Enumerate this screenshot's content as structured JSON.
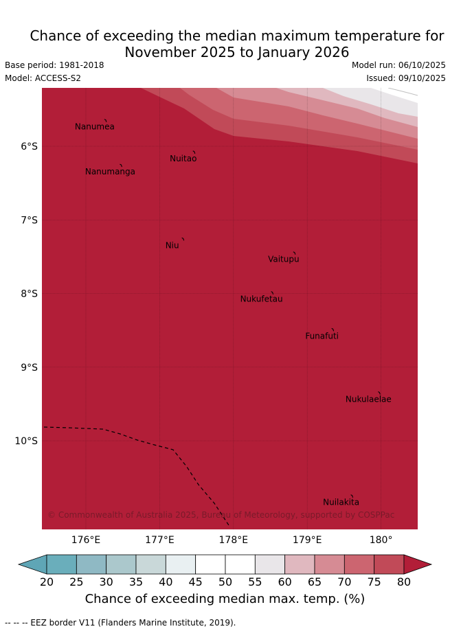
{
  "header": {
    "title_line1": "Chance of exceeding the median maximum temperature for",
    "title_line2": "November 2025 to January 2026",
    "base_period": "Base period: 1981-2018",
    "model": "Model: ACCESS-S2",
    "model_run": "Model run: 06/10/2025",
    "issued": "Issued: 09/10/2025"
  },
  "map": {
    "lon_ticks": [
      "176°E",
      "177°E",
      "178°E",
      "179°E",
      "180°"
    ],
    "lat_ticks": [
      "6°S",
      "7°S",
      "8°S",
      "9°S",
      "10°S"
    ],
    "islands": [
      {
        "name": "Nanumea",
        "lon": 176.12,
        "lat": -5.68
      },
      {
        "name": "Nuitao",
        "lon": 177.32,
        "lat": -6.11
      },
      {
        "name": "Nanumanga",
        "lon": 176.33,
        "lat": -6.29
      },
      {
        "name": "Niu",
        "lon": 177.17,
        "lat": -7.29
      },
      {
        "name": "Vaitupu",
        "lon": 178.68,
        "lat": -7.48
      },
      {
        "name": "Nukufetau",
        "lon": 178.38,
        "lat": -8.02
      },
      {
        "name": "Funafuti",
        "lon": 179.2,
        "lat": -8.52
      },
      {
        "name": "Nukulaelae",
        "lon": 179.83,
        "lat": -9.38
      },
      {
        "name": "Nuilakita",
        "lon": 179.46,
        "lat": -10.78
      }
    ],
    "copyright": "© Commonwealth of Australia 2025, Bureau of Meteorology, supported by COSPPac",
    "colors": {
      "b80": "#b21e38",
      "b75_80": "#c14a58",
      "b70_75": "#cc6570",
      "b65_70": "#d68b94",
      "b60_65": "#e0b8bf",
      "b55_60": "#e9e6e9",
      "b50_55": "#ffffff"
    }
  },
  "colorbar": {
    "ticks": [
      "20",
      "25",
      "30",
      "35",
      "40",
      "45",
      "50",
      "55",
      "60",
      "65",
      "70",
      "75",
      "80"
    ],
    "colors": [
      "#6aaebb",
      "#8fb9c4",
      "#abc8cc",
      "#c9d8d9",
      "#e9f0f2",
      "#ffffff",
      "#ffffff",
      "#e9e6e9",
      "#e0b8bf",
      "#d68b94",
      "#cc6570",
      "#c14a58"
    ],
    "low_color": "#5fa6b6",
    "high_color": "#b21e38",
    "label": "Chance of exceeding median max. temp. (%)"
  },
  "footer": {
    "eez_note": "--  --  -- EEZ border V11 (Flanders Marine Institute, 2019)."
  }
}
